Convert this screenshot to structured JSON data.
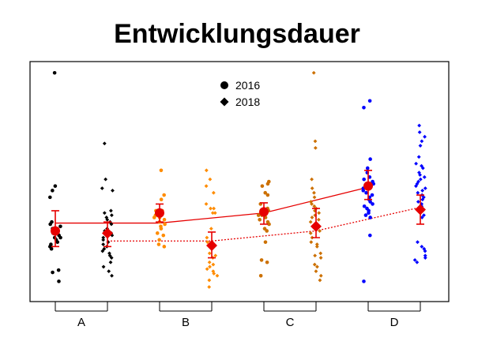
{
  "chart_data": {
    "type": "scatter",
    "title": "Entwicklungsdauer",
    "xlabel": "",
    "ylabel": "",
    "categories": [
      "A",
      "B",
      "C",
      "D"
    ],
    "ylim": [
      0,
      100
    ],
    "grid": false,
    "legend": {
      "placement": "top-center",
      "entries": [
        {
          "label": "2016",
          "shape": "circle"
        },
        {
          "label": "2018",
          "shape": "diamond"
        }
      ]
    },
    "group_colors": [
      "#000000",
      "#FF8C00",
      "#CC7000",
      "#0000FF"
    ],
    "mean_color": "#E60000",
    "series": [
      {
        "name": "2016",
        "shape": "circle",
        "points": [
          [
            98.5,
            48,
            46,
            43,
            32,
            31,
            30,
            29,
            28,
            27,
            27,
            26,
            25,
            25,
            24,
            23,
            22,
            21,
            21,
            20,
            10.5,
            9.5,
            5.5
          ],
          [
            55,
            44,
            42,
            37,
            37,
            36,
            35,
            34,
            34,
            33,
            32,
            31,
            30,
            29,
            27,
            26,
            24,
            22,
            21
          ],
          [
            50,
            49,
            48,
            45,
            44,
            40,
            38,
            37,
            36,
            35,
            35,
            34,
            33,
            32,
            31,
            29,
            28,
            23,
            15,
            14,
            8
          ],
          [
            86,
            83,
            60,
            56,
            54,
            52,
            51,
            50,
            49,
            48,
            47,
            46,
            45,
            44,
            43,
            42,
            41,
            40,
            39,
            38,
            37,
            36,
            35,
            34,
            26,
            5.5
          ]
        ],
        "means": [
          28,
          36,
          36.5,
          48
        ],
        "errors": [
          [
            21,
            37
          ],
          [
            32,
            40
          ],
          [
            31,
            40.5
          ],
          [
            42,
            55
          ]
        ],
        "trend": [
          31.5,
          31.5,
          36,
          47.5
        ]
      },
      {
        "name": "2018",
        "shape": "diamond",
        "points": [
          [
            67,
            51,
            47,
            46,
            37,
            36,
            35,
            34,
            33,
            32,
            31,
            29,
            28,
            27,
            26,
            25,
            24,
            23,
            22,
            21,
            20,
            19,
            18,
            17,
            16,
            14,
            12,
            10,
            8
          ],
          [
            55,
            51,
            48,
            45,
            40,
            38,
            38,
            36,
            36,
            29,
            25,
            23,
            21,
            18,
            17,
            16,
            14,
            13,
            12,
            11,
            10,
            9,
            8,
            6,
            3
          ],
          [
            98.5,
            68,
            65,
            51,
            47,
            45,
            43,
            41,
            40,
            39,
            38,
            37,
            36,
            35,
            34,
            33,
            32,
            30,
            28,
            27,
            25,
            23,
            22,
            21,
            18,
            17,
            16,
            13,
            12,
            10,
            8,
            6
          ],
          [
            75,
            72,
            70,
            68,
            66,
            61,
            58,
            57,
            56,
            54,
            53,
            52,
            51,
            50,
            49,
            48,
            47,
            46,
            45,
            44,
            43,
            42,
            41,
            40,
            39,
            38,
            37,
            35,
            34,
            23,
            21,
            20,
            19,
            17,
            16,
            15,
            14
          ]
        ],
        "means": [
          27,
          21.5,
          30,
          37.5
        ],
        "errors": [
          [
            21,
            32
          ],
          [
            16,
            27.5
          ],
          [
            25,
            38
          ],
          [
            31,
            44
          ]
        ],
        "trend": [
          23.5,
          23.5,
          28,
          38.5
        ]
      }
    ]
  }
}
